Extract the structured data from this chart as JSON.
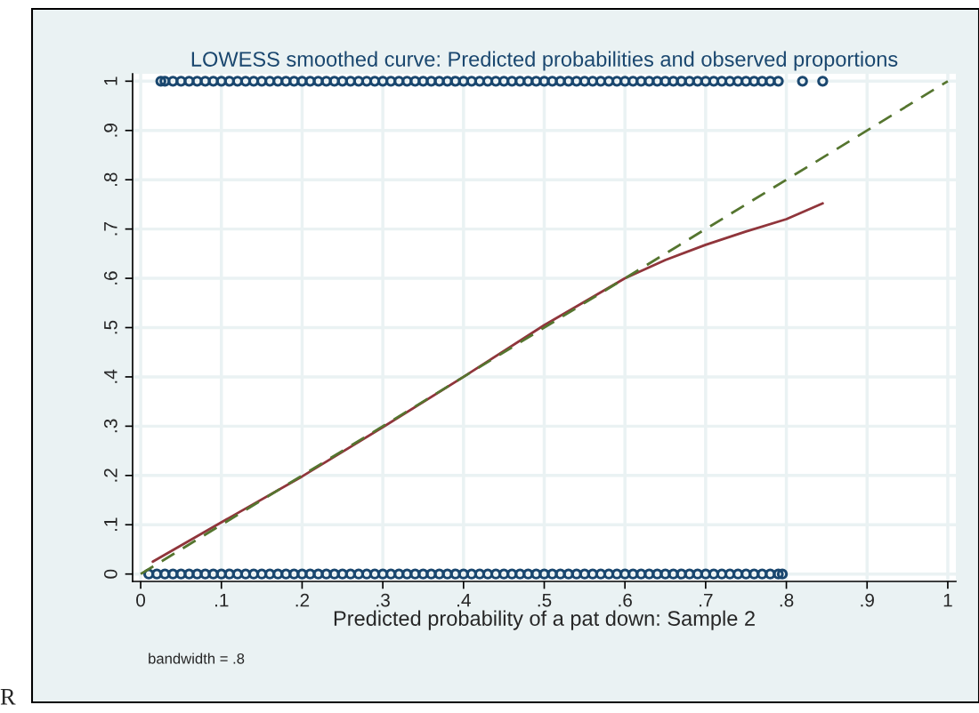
{
  "chart_data": {
    "type": "scatter",
    "title": "LOWESS smoothed curve: Predicted probabilities and observed proportions",
    "xlabel": "Predicted probability of a pat down: Sample 2",
    "annotations": [
      "bandwidth = .8",
      "R"
    ],
    "xlim": [
      -0.01,
      1.01
    ],
    "ylim": [
      -0.015,
      1.015
    ],
    "xticks": [
      0,
      {
        "value": 0.1,
        "label": ".1"
      },
      {
        "value": 0.2,
        "label": ".2"
      },
      {
        "value": 0.3,
        "label": ".3"
      },
      {
        "value": 0.4,
        "label": ".4"
      },
      {
        "value": 0.5,
        "label": ".5"
      },
      {
        "value": 0.6,
        "label": ".6"
      },
      {
        "value": 0.7,
        "label": ".7"
      },
      {
        "value": 0.8,
        "label": ".8"
      },
      {
        "value": 0.9,
        "label": ".9"
      },
      1
    ],
    "yticks": [
      0,
      {
        "value": 0.1,
        "label": ".1"
      },
      {
        "value": 0.2,
        "label": ".2"
      },
      {
        "value": 0.3,
        "label": ".3"
      },
      {
        "value": 0.4,
        "label": ".4"
      },
      {
        "value": 0.5,
        "label": ".5"
      },
      {
        "value": 0.6,
        "label": ".6"
      },
      {
        "value": 0.7,
        "label": ".7"
      },
      {
        "value": 0.8,
        "label": ".8"
      },
      {
        "value": 0.9,
        "label": ".9"
      },
      1
    ],
    "grid": true,
    "legend": false,
    "marker": "circle",
    "series": [
      {
        "color": "#1a476f",
        "x": [
          0.025,
          0.03,
          0.04,
          0.05,
          0.06,
          0.07,
          0.08,
          0.09,
          0.1,
          0.11,
          0.12,
          0.13,
          0.14,
          0.15,
          0.16,
          0.17,
          0.18,
          0.19,
          0.2,
          0.21,
          0.22,
          0.23,
          0.24,
          0.25,
          0.26,
          0.27,
          0.28,
          0.29,
          0.3,
          0.31,
          0.32,
          0.33,
          0.34,
          0.35,
          0.36,
          0.37,
          0.38,
          0.39,
          0.4,
          0.41,
          0.42,
          0.43,
          0.44,
          0.45,
          0.46,
          0.47,
          0.48,
          0.49,
          0.5,
          0.51,
          0.52,
          0.53,
          0.54,
          0.55,
          0.56,
          0.57,
          0.58,
          0.59,
          0.6,
          0.61,
          0.62,
          0.63,
          0.64,
          0.65,
          0.66,
          0.67,
          0.68,
          0.69,
          0.7,
          0.71,
          0.72,
          0.73,
          0.74,
          0.75,
          0.76,
          0.77,
          0.78,
          0.79,
          0.82,
          0.845
        ],
        "values": [
          1,
          1,
          1,
          1,
          1,
          1,
          1,
          1,
          1,
          1,
          1,
          1,
          1,
          1,
          1,
          1,
          1,
          1,
          1,
          1,
          1,
          1,
          1,
          1,
          1,
          1,
          1,
          1,
          1,
          1,
          1,
          1,
          1,
          1,
          1,
          1,
          1,
          1,
          1,
          1,
          1,
          1,
          1,
          1,
          1,
          1,
          1,
          1,
          1,
          1,
          1,
          1,
          1,
          1,
          1,
          1,
          1,
          1,
          1,
          1,
          1,
          1,
          1,
          1,
          1,
          1,
          1,
          1,
          1,
          1,
          1,
          1,
          1,
          1,
          1,
          1,
          1,
          1,
          1,
          1
        ]
      },
      {
        "color": "#1a476f",
        "x": [
          0.01,
          0.02,
          0.03,
          0.04,
          0.05,
          0.06,
          0.07,
          0.08,
          0.09,
          0.1,
          0.11,
          0.12,
          0.13,
          0.14,
          0.15,
          0.16,
          0.17,
          0.18,
          0.19,
          0.2,
          0.21,
          0.22,
          0.23,
          0.24,
          0.25,
          0.26,
          0.27,
          0.28,
          0.29,
          0.3,
          0.31,
          0.32,
          0.33,
          0.34,
          0.35,
          0.36,
          0.37,
          0.38,
          0.39,
          0.4,
          0.41,
          0.42,
          0.43,
          0.44,
          0.45,
          0.46,
          0.47,
          0.48,
          0.49,
          0.5,
          0.51,
          0.52,
          0.53,
          0.54,
          0.55,
          0.56,
          0.57,
          0.58,
          0.59,
          0.6,
          0.61,
          0.62,
          0.63,
          0.64,
          0.65,
          0.66,
          0.67,
          0.68,
          0.69,
          0.7,
          0.71,
          0.72,
          0.73,
          0.74,
          0.75,
          0.76,
          0.77,
          0.78,
          0.79,
          0.795
        ],
        "values": [
          0,
          0,
          0,
          0,
          0,
          0,
          0,
          0,
          0,
          0,
          0,
          0,
          0,
          0,
          0,
          0,
          0,
          0,
          0,
          0,
          0,
          0,
          0,
          0,
          0,
          0,
          0,
          0,
          0,
          0,
          0,
          0,
          0,
          0,
          0,
          0,
          0,
          0,
          0,
          0,
          0,
          0,
          0,
          0,
          0,
          0,
          0,
          0,
          0,
          0,
          0,
          0,
          0,
          0,
          0,
          0,
          0,
          0,
          0,
          0,
          0,
          0,
          0,
          0,
          0,
          0,
          0,
          0,
          0,
          0,
          0,
          0,
          0,
          0,
          0,
          0,
          0,
          0,
          0,
          0
        ]
      },
      {
        "type": "line",
        "color": "#90353b",
        "line_style": "solid",
        "marker": "none",
        "x": [
          0.015,
          0.1,
          0.2,
          0.3,
          0.4,
          0.5,
          0.6,
          0.65,
          0.7,
          0.75,
          0.8,
          0.845
        ],
        "values": [
          0.025,
          0.105,
          0.198,
          0.298,
          0.4,
          0.505,
          0.6,
          0.637,
          0.668,
          0.695,
          0.72,
          0.752
        ]
      },
      {
        "type": "line",
        "color": "#55752f",
        "line_style": "dashed",
        "marker": "none",
        "x": [
          0,
          1
        ],
        "values": [
          0,
          1
        ]
      }
    ]
  }
}
